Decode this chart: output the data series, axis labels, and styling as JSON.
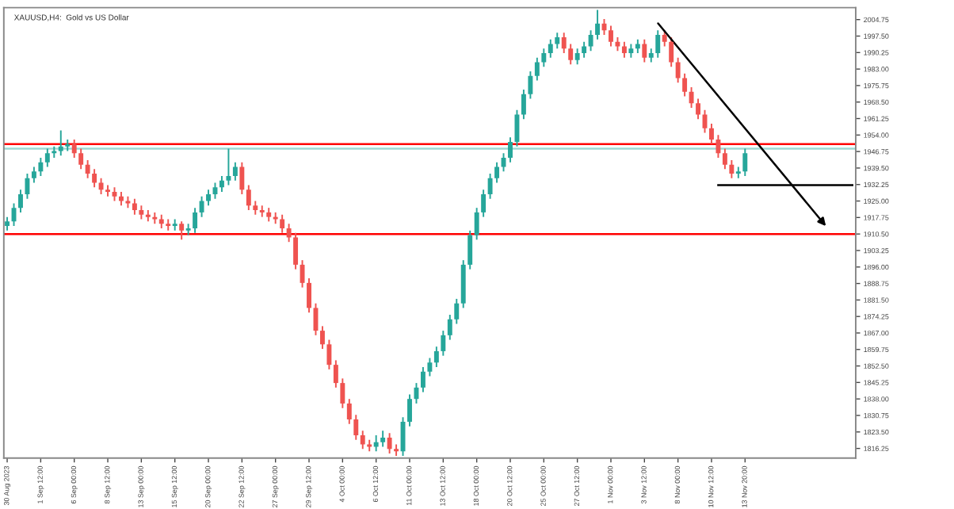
{
  "chart_data": {
    "type": "candlestick",
    "title": "XAUUSD,H4:  Gold vs US Dollar",
    "categories": [
      "30 Aug 2023",
      null,
      null,
      null,
      null,
      "1 Sep 12:00",
      null,
      null,
      null,
      null,
      "6 Sep 00:00",
      null,
      null,
      null,
      null,
      "8 Sep 12:00",
      null,
      null,
      null,
      null,
      "13 Sep 00:00",
      null,
      null,
      null,
      null,
      "15 Sep 12:00",
      null,
      null,
      null,
      null,
      "20 Sep 00:00",
      null,
      null,
      null,
      null,
      "22 Sep 12:00",
      null,
      null,
      null,
      null,
      "27 Sep 00:00",
      null,
      null,
      null,
      null,
      "29 Sep 12:00",
      null,
      null,
      null,
      null,
      "4 Oct 00:00",
      null,
      null,
      null,
      null,
      "6 Oct 12:00",
      null,
      null,
      null,
      null,
      "11 Oct 00:00",
      null,
      null,
      null,
      null,
      "13 Oct 12:00",
      null,
      null,
      null,
      null,
      "18 Oct 00:00",
      null,
      null,
      null,
      null,
      "20 Oct 12:00",
      null,
      null,
      null,
      null,
      "25 Oct 00:00",
      null,
      null,
      null,
      null,
      "27 Oct 12:00",
      null,
      null,
      null,
      null,
      "1 Nov 00:00",
      null,
      null,
      null,
      null,
      "3 Nov 12:00",
      null,
      null,
      null,
      null,
      "8 Nov 00:00",
      null,
      null,
      null,
      null,
      "10 Nov 12:00",
      null,
      null,
      null,
      null,
      "13 Nov 20:00",
      null,
      null,
      null,
      null,
      null,
      null,
      null,
      null,
      null,
      null,
      null,
      null,
      null,
      null,
      null,
      null
    ],
    "ohlc": [
      [
        1914,
        1918,
        1912,
        1916
      ],
      [
        1916,
        1924,
        1914,
        1922
      ],
      [
        1922,
        1930,
        1920,
        1928
      ],
      [
        1928,
        1937,
        1926,
        1935
      ],
      [
        1935,
        1940,
        1933,
        1938
      ],
      [
        1938,
        1944,
        1936,
        1942
      ],
      [
        1942,
        1948,
        1940,
        1946
      ],
      [
        1946,
        1949,
        1944,
        1947
      ],
      [
        1947,
        1956,
        1945,
        1949
      ],
      [
        1949,
        1952,
        1947,
        1950
      ],
      [
        1950,
        1952,
        1944,
        1946
      ],
      [
        1946,
        1948,
        1939,
        1941
      ],
      [
        1941,
        1943,
        1935,
        1937
      ],
      [
        1937,
        1939,
        1931,
        1933
      ],
      [
        1933,
        1935,
        1928,
        1930
      ],
      [
        1930,
        1932,
        1927,
        1929
      ],
      [
        1929,
        1931,
        1925,
        1927
      ],
      [
        1927,
        1929,
        1923,
        1925
      ],
      [
        1925,
        1927,
        1922,
        1924
      ],
      [
        1924,
        1926,
        1919,
        1921
      ],
      [
        1921,
        1923,
        1917,
        1919
      ],
      [
        1919,
        1921,
        1916,
        1918
      ],
      [
        1918,
        1920,
        1915,
        1917
      ],
      [
        1917,
        1919,
        1913,
        1915
      ],
      [
        1915,
        1917,
        1912,
        1914
      ],
      [
        1914,
        1917,
        1912,
        1915
      ],
      [
        1915,
        1916,
        1908,
        1912
      ],
      [
        1912,
        1915,
        1910,
        1913
      ],
      [
        1913,
        1922,
        1911,
        1920
      ],
      [
        1920,
        1927,
        1918,
        1925
      ],
      [
        1925,
        1930,
        1923,
        1928
      ],
      [
        1928,
        1933,
        1926,
        1931
      ],
      [
        1931,
        1936,
        1929,
        1934
      ],
      [
        1934,
        1948,
        1932,
        1936
      ],
      [
        1936,
        1942,
        1934,
        1940
      ],
      [
        1940,
        1942,
        1928,
        1930
      ],
      [
        1930,
        1932,
        1921,
        1923
      ],
      [
        1923,
        1925,
        1919,
        1921
      ],
      [
        1921,
        1923,
        1918,
        1920
      ],
      [
        1920,
        1922,
        1916,
        1918
      ],
      [
        1918,
        1920,
        1915,
        1917
      ],
      [
        1917,
        1919,
        1911,
        1913
      ],
      [
        1913,
        1915,
        1907,
        1909
      ],
      [
        1909,
        1911,
        1895,
        1897
      ],
      [
        1897,
        1899,
        1887,
        1889
      ],
      [
        1889,
        1891,
        1876,
        1878
      ],
      [
        1878,
        1880,
        1866,
        1868
      ],
      [
        1868,
        1870,
        1860,
        1862
      ],
      [
        1862,
        1864,
        1851,
        1853
      ],
      [
        1853,
        1855,
        1843,
        1845
      ],
      [
        1845,
        1847,
        1834,
        1836
      ],
      [
        1836,
        1838,
        1827,
        1829
      ],
      [
        1829,
        1831,
        1820,
        1822
      ],
      [
        1822,
        1824,
        1816,
        1818
      ],
      [
        1818,
        1820,
        1815,
        1817
      ],
      [
        1817,
        1822,
        1815,
        1819
      ],
      [
        1819,
        1824,
        1817,
        1821
      ],
      [
        1821,
        1823,
        1814,
        1816
      ],
      [
        1816,
        1818,
        1813,
        1815
      ],
      [
        1815,
        1830,
        1813,
        1828
      ],
      [
        1828,
        1840,
        1826,
        1838
      ],
      [
        1838,
        1845,
        1836,
        1843
      ],
      [
        1843,
        1852,
        1841,
        1850
      ],
      [
        1850,
        1856,
        1848,
        1854
      ],
      [
        1854,
        1861,
        1852,
        1859
      ],
      [
        1859,
        1868,
        1857,
        1866
      ],
      [
        1866,
        1875,
        1864,
        1873
      ],
      [
        1873,
        1882,
        1871,
        1880
      ],
      [
        1880,
        1899,
        1878,
        1897
      ],
      [
        1897,
        1912,
        1895,
        1910
      ],
      [
        1910,
        1922,
        1908,
        1920
      ],
      [
        1920,
        1930,
        1918,
        1928
      ],
      [
        1928,
        1937,
        1926,
        1935
      ],
      [
        1935,
        1942,
        1933,
        1940
      ],
      [
        1940,
        1946,
        1938,
        1944
      ],
      [
        1944,
        1953,
        1942,
        1951
      ],
      [
        1951,
        1965,
        1949,
        1963
      ],
      [
        1963,
        1974,
        1961,
        1972
      ],
      [
        1972,
        1982,
        1970,
        1980
      ],
      [
        1980,
        1988,
        1978,
        1986
      ],
      [
        1986,
        1992,
        1984,
        1990
      ],
      [
        1990,
        1996,
        1988,
        1994
      ],
      [
        1994,
        1999,
        1992,
        1997
      ],
      [
        1997,
        1999,
        1990,
        1992
      ],
      [
        1992,
        1994,
        1985,
        1987
      ],
      [
        1987,
        1992,
        1985,
        1990
      ],
      [
        1990,
        1995,
        1988,
        1993
      ],
      [
        1993,
        2000,
        1991,
        1998
      ],
      [
        1998,
        2009,
        1996,
        2003
      ],
      [
        2003,
        2005,
        1998,
        2000
      ],
      [
        2000,
        2002,
        1993,
        1995
      ],
      [
        1995,
        1997,
        1991,
        1993
      ],
      [
        1993,
        1995,
        1988,
        1990
      ],
      [
        1990,
        1994,
        1988,
        1992
      ],
      [
        1992,
        1996,
        1990,
        1994
      ],
      [
        1994,
        1996,
        1986,
        1988
      ],
      [
        1988,
        1992,
        1986,
        1990
      ],
      [
        1990,
        2000,
        1988,
        1998
      ],
      [
        1998,
        2000,
        1993,
        1995
      ],
      [
        1995,
        1997,
        1984,
        1986
      ],
      [
        1986,
        1988,
        1977,
        1979
      ],
      [
        1979,
        1981,
        1971,
        1973
      ],
      [
        1973,
        1975,
        1966,
        1968
      ],
      [
        1968,
        1970,
        1961,
        1963
      ],
      [
        1963,
        1965,
        1955,
        1957
      ],
      [
        1957,
        1959,
        1950,
        1952
      ],
      [
        1952,
        1954,
        1944,
        1946
      ],
      [
        1946,
        1948,
        1939,
        1941
      ],
      [
        1941,
        1943,
        1935,
        1937
      ],
      [
        1937,
        1940,
        1935,
        1938
      ],
      [
        1938,
        1948,
        1936,
        1946
      ],
      null,
      null,
      null,
      null,
      null,
      null,
      null,
      null,
      null,
      null,
      null,
      null,
      null,
      null,
      null,
      null
    ],
    "colors": [
      "#26a69a",
      "#26a69a",
      "#26a69a",
      "#26a69a",
      "#26a69a",
      "#26a69a",
      "#26a69a",
      "#26a69a",
      "#26a69a",
      "#26a69a",
      "#ef5350",
      "#ef5350",
      "#ef5350",
      "#ef5350",
      "#ef5350",
      "#ef5350",
      "#ef5350",
      "#ef5350",
      "#ef5350",
      "#ef5350",
      "#ef5350",
      "#ef5350",
      "#ef5350",
      "#ef5350",
      "#ef5350",
      "#26a69a",
      "#ef5350",
      "#26a69a",
      "#26a69a",
      "#26a69a",
      "#26a69a",
      "#26a69a",
      "#26a69a",
      "#26a69a",
      "#26a69a",
      "#ef5350",
      "#ef5350",
      "#ef5350",
      "#ef5350",
      "#ef5350",
      "#ef5350",
      "#ef5350",
      "#ef5350",
      "#ef5350",
      "#ef5350",
      "#ef5350",
      "#ef5350",
      "#ef5350",
      "#ef5350",
      "#ef5350",
      "#ef5350",
      "#ef5350",
      "#ef5350",
      "#ef5350",
      "#ef5350",
      "#26a69a",
      "#26a69a",
      "#ef5350",
      "#ef5350",
      "#26a69a",
      "#26a69a",
      "#26a69a",
      "#26a69a",
      "#26a69a",
      "#26a69a",
      "#26a69a",
      "#26a69a",
      "#26a69a",
      "#26a69a",
      "#26a69a",
      "#26a69a",
      "#26a69a",
      "#26a69a",
      "#26a69a",
      "#26a69a",
      "#26a69a",
      "#26a69a",
      "#26a69a",
      "#26a69a",
      "#26a69a",
      "#26a69a",
      "#26a69a",
      "#26a69a",
      "#ef5350",
      "#ef5350",
      "#26a69a",
      "#26a69a",
      "#26a69a",
      "#26a69a",
      "#ef5350",
      "#ef5350",
      "#ef5350",
      "#ef5350",
      "#26a69a",
      "#26a69a",
      "#ef5350",
      "#26a69a",
      "#26a69a",
      "#ef5350",
      "#ef5350",
      "#ef5350",
      "#ef5350",
      "#ef5350",
      "#ef5350",
      "#ef5350",
      "#ef5350",
      "#ef5350",
      "#ef5350",
      "#ef5350",
      "#26a69a",
      "#26a69a",
      null,
      null,
      null,
      null,
      null,
      null,
      null,
      null,
      null,
      null,
      null,
      null,
      null,
      null,
      null,
      null
    ],
    "series": [
      {
        "type": "line",
        "color": "#000000",
        "values": [
          null,
          null,
          null,
          null,
          null,
          null,
          null,
          null,
          null,
          null,
          null,
          null,
          null,
          null,
          null,
          null,
          null,
          null,
          null,
          null,
          null,
          null,
          null,
          null,
          null,
          null,
          null,
          null,
          null,
          null,
          null,
          null,
          null,
          null,
          null,
          null,
          null,
          null,
          null,
          null,
          null,
          null,
          null,
          null,
          null,
          null,
          null,
          null,
          null,
          null,
          null,
          null,
          null,
          null,
          null,
          null,
          null,
          null,
          null,
          null,
          null,
          null,
          null,
          null,
          null,
          null,
          null,
          null,
          null,
          null,
          null,
          null,
          null,
          null,
          null,
          null,
          null,
          null,
          null,
          null,
          null,
          null,
          null,
          null,
          null,
          null,
          null,
          null,
          null,
          null,
          null,
          null,
          null,
          null,
          null,
          null,
          null,
          null,
          null,
          null,
          null,
          null,
          null,
          null,
          null,
          null,
          1932,
          null,
          null,
          null,
          null,
          null,
          null,
          null,
          null,
          null,
          null,
          null,
          null,
          null,
          null,
          null,
          null,
          null,
          null,
          null,
          1932
        ]
      }
    ],
    "ylim": [
      1812,
      2010
    ],
    "yticks": [
      1816.25,
      {
        "value": 1823.5,
        "label": "1823.50"
      },
      1830.75,
      {
        "value": 1838,
        "label": "1838.00"
      },
      1845.25,
      {
        "value": 1852.5,
        "label": "1852.50"
      },
      1859.75,
      {
        "value": 1867,
        "label": "1867.00"
      },
      1874.25,
      {
        "value": 1881.5,
        "label": "1881.50"
      },
      1888.75,
      {
        "value": 1896,
        "label": "1896.00"
      },
      1903.25,
      {
        "value": 1910.5,
        "label": "1910.50"
      },
      1917.75,
      {
        "value": 1925,
        "label": "1925.00"
      },
      1932.25,
      {
        "value": 1939.5,
        "label": "1939.50"
      },
      1946.75,
      {
        "value": 1954,
        "label": "1954.00"
      },
      1961.25,
      {
        "value": 1968.5,
        "label": "1968.50"
      },
      1975.75,
      {
        "value": 1983,
        "label": "1983.00"
      },
      1990.25,
      {
        "value": 1997.5,
        "label": "1997.50"
      },
      2004.75
    ],
    "ref_lines": [
      {
        "axis": "y",
        "value": 1950,
        "color": "#ff0000"
      },
      {
        "axis": "y",
        "value": 1910.5,
        "color": "#ff0000"
      },
      {
        "axis": "y",
        "value": 1948,
        "color": "#9fd8d3"
      }
    ],
    "grid": false,
    "legend": false,
    "marker": "none",
    "line_style": "solid"
  }
}
